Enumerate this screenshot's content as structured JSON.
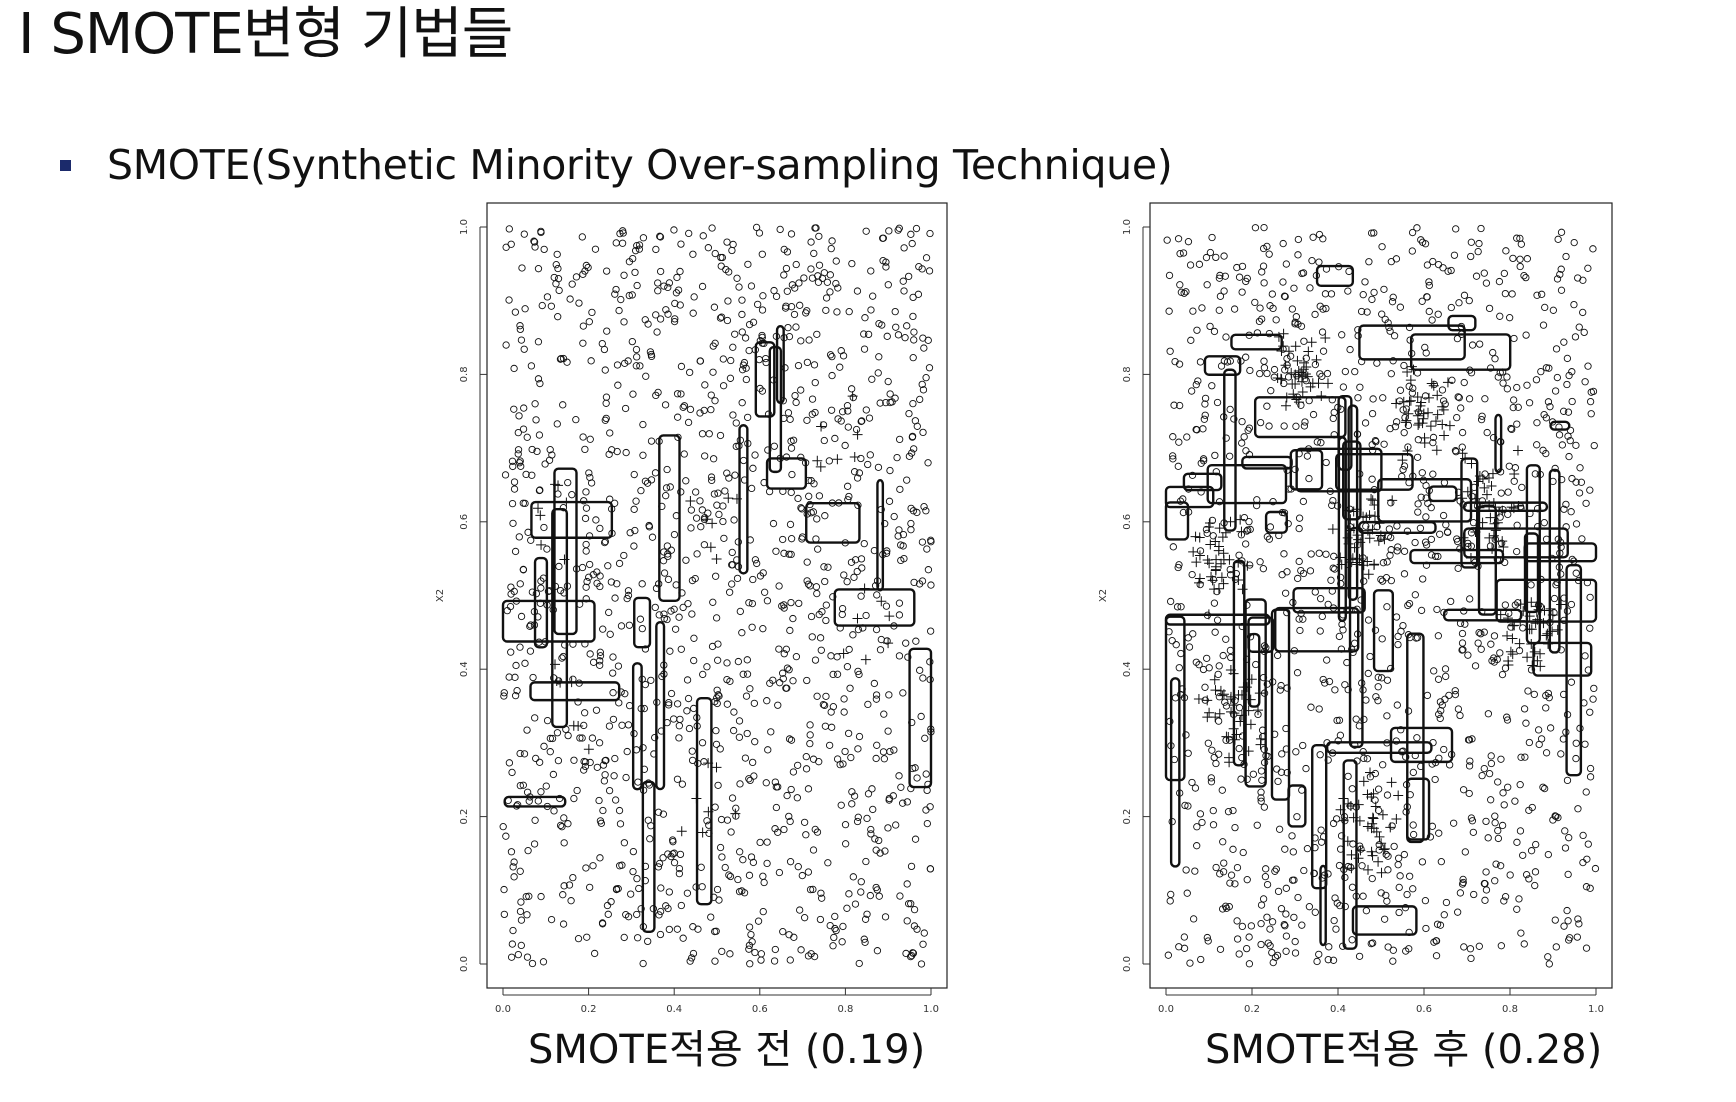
{
  "slide": {
    "title": "I SMOTE변형 기법들",
    "bullet": "SMOTE(Synthetic Minority Over-sampling Technique)"
  },
  "colors": {
    "bullet": "#1b2a6b",
    "ink": "#111111"
  },
  "chart_data": [
    {
      "type": "scatter",
      "caption": "SMOTE적용 전 (0.19)",
      "xlabel": "",
      "ylabel": "X2",
      "xlim": [
        0.0,
        1.0
      ],
      "ylim": [
        0.0,
        1.0
      ],
      "xticks": [
        "0.0",
        "0.2",
        "0.4",
        "0.6",
        "0.8",
        "1.0"
      ],
      "yticks": [
        "0.0",
        "0.2",
        "0.4",
        "0.6",
        "0.8",
        "1.0"
      ],
      "markers": {
        "majority": "circle",
        "minority": "plus"
      },
      "minority_clusters": [
        [
          0.5,
          0.6
        ],
        [
          0.48,
          0.22
        ],
        [
          0.78,
          0.7
        ],
        [
          0.12,
          0.6
        ],
        [
          0.15,
          0.35
        ],
        [
          0.85,
          0.45
        ]
      ],
      "grid": false
    },
    {
      "type": "scatter",
      "caption": "SMOTE적용 후 (0.28)",
      "xlabel": "",
      "ylabel": "X2",
      "xlim": [
        0.0,
        1.0
      ],
      "ylim": [
        0.0,
        1.0
      ],
      "xticks": [
        "0.0",
        "0.2",
        "0.4",
        "0.6",
        "0.8",
        "1.0"
      ],
      "yticks": [
        "0.0",
        "0.2",
        "0.4",
        "0.6",
        "0.8",
        "1.0"
      ],
      "markers": {
        "majority": "circle",
        "minority": "plus"
      },
      "minority_clusters": [
        [
          0.45,
          0.58
        ],
        [
          0.48,
          0.2
        ],
        [
          0.76,
          0.62
        ],
        [
          0.12,
          0.55
        ],
        [
          0.15,
          0.35
        ],
        [
          0.85,
          0.45
        ],
        [
          0.3,
          0.8
        ],
        [
          0.6,
          0.75
        ]
      ],
      "grid": false
    }
  ]
}
